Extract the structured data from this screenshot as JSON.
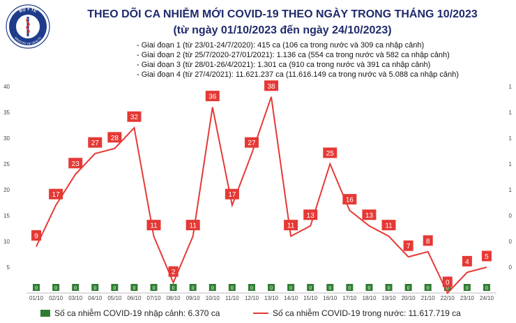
{
  "header": {
    "logo_text_top": "BỘ Y TẾ",
    "logo_text_bottom": "MINISTRY OF HEALTH",
    "title": "THEO DÕI CA NHIỄM MỚI COVID-19 THEO NGÀY TRONG THÁNG 10/2023",
    "subtitle": "(từ ngày 01/10/2023 đến ngày 24/10/2023)"
  },
  "phases": [
    "Giai đoạn 1 (từ 23/01-24/7/2020): 415 ca (106 ca trong nước và 309 ca nhập cảnh)",
    "Giai đoạn 2 (từ 25/7/2020-27/01/2021): 1.136 ca (554 ca trong nước và 582 ca nhập cảnh)",
    "Giai đoạn 3 (từ 28/01-26/4/2021): 1.301 ca (910 ca trong nước và 391 ca nhập cảnh)",
    "Giai đoạn 4 (từ 27/4/2021): 11.621.237 ca (11.616.149 ca trong nước và 5.088 ca nhập cảnh)"
  ],
  "legend": {
    "imported": "Số ca nhiễm COVID-19 nhập cảnh: 6.370 ca",
    "domestic": "Số ca nhiễm COVID-19 trong nước: 11.617.719 ca"
  },
  "colors": {
    "domestic": "#e53935",
    "imported": "#2e7d32",
    "title": "#1f2a6b"
  },
  "chart_data": {
    "type": "line",
    "categories": [
      "01/10",
      "02/10",
      "03/10",
      "04/10",
      "05/10",
      "06/10",
      "07/10",
      "08/10",
      "09/10",
      "10/10",
      "11/10",
      "12/10",
      "13/10",
      "14/10",
      "15/10",
      "16/10",
      "17/10",
      "18/10",
      "19/10",
      "20/10",
      "21/10",
      "22/10",
      "23/10",
      "24/10"
    ],
    "series": [
      {
        "name": "Số ca nhiễm COVID-19 trong nước: 11.617.719 ca",
        "kind": "line",
        "values": [
          9,
          17,
          23,
          27,
          28,
          32,
          11,
          2,
          11,
          36,
          17,
          27,
          38,
          11,
          13,
          25,
          16,
          13,
          11,
          7,
          8,
          0,
          4,
          5
        ]
      },
      {
        "name": "Số ca nhiễm COVID-19 nhập cảnh: 6.370 ca",
        "kind": "bar",
        "values": [
          0,
          0,
          0,
          0,
          0,
          0,
          0,
          0,
          0,
          0,
          0,
          0,
          0,
          0,
          0,
          0,
          0,
          0,
          0,
          0,
          0,
          0,
          0,
          0
        ]
      }
    ],
    "data_labels": [
      "9",
      "17",
      "23",
      "27",
      "28",
      "32",
      "11",
      "2",
      "11",
      "36",
      "17",
      "27",
      "38",
      "11",
      "13",
      "25",
      "16",
      "13",
      "11",
      "7",
      "8",
      "0",
      "4",
      "5"
    ],
    "imported_labels": [
      "0",
      "0",
      "0",
      "0",
      "0",
      "0",
      "0",
      "0",
      "0",
      "0",
      "0",
      "0",
      "0",
      "0",
      "0",
      "0",
      "0",
      "0",
      "0",
      "0",
      "0",
      "0",
      "0",
      "0"
    ],
    "yticks": [
      0,
      5,
      10,
      15,
      20,
      25,
      30,
      35,
      40
    ],
    "ytick_labels": [
      "",
      "5",
      "10",
      "15",
      "20",
      "25",
      "30",
      "35",
      "40"
    ],
    "ylim": [
      0,
      40
    ],
    "right_axis_ticks": [
      "0",
      "0",
      "0",
      "1",
      "1",
      "1",
      "1",
      "1"
    ],
    "grid": false,
    "legend_position": "bottom"
  }
}
